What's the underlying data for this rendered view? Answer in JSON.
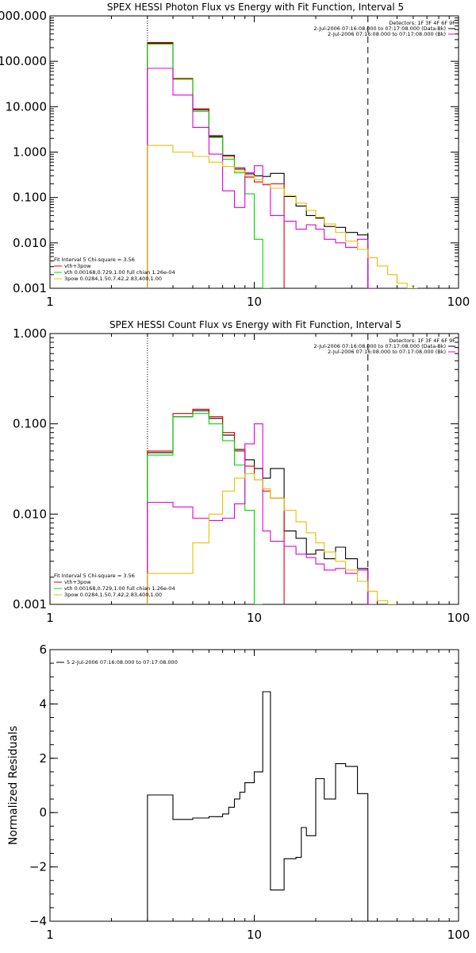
{
  "colors": {
    "black": "#000000",
    "red": "#e00000",
    "green": "#00d800",
    "magenta": "#e000e0",
    "yellow": "#e8c000"
  },
  "chart_data": [
    {
      "type": "line",
      "title": "SPEX HESSI Photon Flux vs Energy with Fit Function, Interval 5",
      "ylabel": "",
      "xscale": "log",
      "yscale": "log",
      "xlim": [
        1,
        100
      ],
      "ylim": [
        0.001,
        1000
      ],
      "xticks": [
        1,
        10,
        100
      ],
      "xticklabels": [
        "1",
        "10",
        "100"
      ],
      "yticks": [
        0.001,
        0.01,
        0.1,
        1,
        10,
        100,
        1000
      ],
      "yticklabels": [
        "0.001",
        "0.010",
        "0.100",
        "1.000",
        "10.000",
        "100.000",
        "1000.000"
      ],
      "vlines": [
        {
          "x": 3,
          "style": "dotted"
        },
        {
          "x": 36,
          "style": "dashed"
        }
      ],
      "legend_right": [
        "Detectors: 1F 3F 4F 6F 9F",
        "2-Jul-2006 07:16:08.000 to 07:17:08.000 (Data-Bk)",
        "2-Jul-2006 07:16:08.000 to 07:17:08.000 (Bk)"
      ],
      "legend_right_colors": [
        "",
        "#000000",
        "#e000e0"
      ],
      "legend_left": [
        "Fit Interval 5   Chi-square = 3.56",
        "vth+3pow",
        "vth 0.00168,0.729,1.00  full chian 1.26e-04",
        "3pow 0.0284,1.50,7.42,2.83,400,1.00"
      ],
      "legend_left_colors": [
        "",
        "#e00000",
        "#00d800",
        "#e8c000"
      ],
      "edges": [
        3,
        4,
        5,
        6,
        7,
        8,
        9,
        10,
        11,
        12,
        14,
        16,
        18,
        20,
        22,
        25,
        28,
        32,
        36,
        40,
        45,
        50,
        56,
        63
      ],
      "series": [
        {
          "color": "#000000",
          "values": [
            250,
            40,
            8.5,
            2.2,
            0.85,
            0.42,
            0.33,
            0.3,
            0.29,
            0.34,
            0.105,
            0.065,
            0.04,
            0.035,
            0.023,
            0.022,
            0.017,
            0.015,
            0.0006
          ]
        },
        {
          "color": "#e00000",
          "values": [
            260,
            42,
            9,
            2.3,
            0.8,
            0.45,
            0.28,
            0.22,
            0.2,
            0.2
          ]
        },
        {
          "color": "#00d800",
          "values": [
            240,
            40,
            7.8,
            2.1,
            0.7,
            0.35,
            0.12,
            0.012,
            0.0006
          ]
        },
        {
          "color": "#e000e0",
          "values": [
            70,
            18,
            3.5,
            0.9,
            0.14,
            0.06,
            0.35,
            0.5,
            0.19,
            0.04,
            0.03,
            0.02,
            0.025,
            0.02,
            0.012,
            0.01,
            0.008,
            0.012,
            0.0006
          ]
        },
        {
          "color": "#e8c000",
          "values": [
            1.4,
            1.0,
            0.8,
            0.6,
            0.48,
            0.38,
            0.3,
            0.25,
            0.2,
            0.16,
            0.11,
            0.075,
            0.052,
            0.037,
            0.026,
            0.017,
            0.011,
            0.0072,
            0.0047,
            0.0031,
            0.002,
            0.0013,
            0.0009
          ]
        }
      ]
    },
    {
      "type": "line",
      "title": "SPEX HESSI Count Flux vs Energy with Fit Function, Interval 5",
      "ylabel": "",
      "xscale": "log",
      "yscale": "log",
      "xlim": [
        1,
        100
      ],
      "ylim": [
        0.001,
        1
      ],
      "xticks": [
        1,
        10,
        100
      ],
      "xticklabels": [
        "1",
        "10",
        "100"
      ],
      "yticks": [
        0.001,
        0.01,
        0.1,
        1
      ],
      "yticklabels": [
        "0.001",
        "0.010",
        "0.100",
        "1.000"
      ],
      "vlines": [
        {
          "x": 3,
          "style": "dotted"
        },
        {
          "x": 36,
          "style": "dashed"
        }
      ],
      "legend_right": [
        "Detectors: 1F 3F 4F 6F 9F",
        "2-Jul-2006 07:16:08.000 to 07:17:08.000 (Data-Bk)",
        "2-Jul-2006 07:16:08.000 to 07:17:08.000 (Bk)"
      ],
      "legend_right_colors": [
        "",
        "#000000",
        "#e000e0"
      ],
      "legend_left": [
        "Fit Interval 5   Chi-square = 3.56",
        "vth+3pow",
        "vth 0.00168,0.729,1.00  full chian 1.26e-04",
        "3pow 0.0284,1.50,7.42,2.83,400,1.00"
      ],
      "legend_left_colors": [
        "",
        "#e00000",
        "#00d800",
        "#e8c000"
      ],
      "edges": [
        3,
        4,
        5,
        6,
        7,
        8,
        9,
        10,
        11,
        12,
        14,
        16,
        18,
        20,
        22,
        25,
        28,
        32,
        36,
        40,
        45,
        50,
        56,
        63
      ],
      "series": [
        {
          "color": "#000000",
          "values": [
            0.048,
            0.12,
            0.14,
            0.115,
            0.075,
            0.052,
            0.04,
            0.032,
            0.025,
            0.032,
            0.0065,
            0.0054,
            0.0036,
            0.004,
            0.0032,
            0.0043,
            0.0032,
            0.0025,
            0.0006
          ]
        },
        {
          "color": "#e00000",
          "values": [
            0.05,
            0.13,
            0.145,
            0.12,
            0.08,
            0.05,
            0.034,
            0.024,
            0.018,
            0.015
          ]
        },
        {
          "color": "#00d800",
          "values": [
            0.045,
            0.12,
            0.13,
            0.1,
            0.065,
            0.035,
            0.011,
            0.0006
          ]
        },
        {
          "color": "#e000e0",
          "values": [
            0.0135,
            0.012,
            0.009,
            0.0085,
            0.009,
            0.013,
            0.06,
            0.1,
            0.0065,
            0.005,
            0.0044,
            0.0036,
            0.0033,
            0.0028,
            0.0024,
            0.0025,
            0.0022,
            0.0024,
            0.0006
          ]
        },
        {
          "color": "#e8c000",
          "values": [
            0.0022,
            0.0022,
            0.0048,
            0.01,
            0.018,
            0.025,
            0.028,
            0.024,
            0.019,
            0.015,
            0.011,
            0.0082,
            0.0062,
            0.0048,
            0.0038,
            0.003,
            0.0024,
            0.0018,
            0.0014,
            0.0011,
            0.0006
          ]
        }
      ]
    },
    {
      "type": "line",
      "title": "",
      "ylabel": "Normalized Residuals",
      "xscale": "log",
      "yscale": "linear",
      "xlim": [
        1,
        100
      ],
      "ylim": [
        -4,
        6
      ],
      "xticks": [
        1,
        10,
        100
      ],
      "xticklabels": [
        "1",
        "10",
        "100"
      ],
      "yticks": [
        -4,
        -2,
        0,
        2,
        4,
        6
      ],
      "yticklabels": [
        "−4",
        "−2",
        "0",
        "2",
        "4",
        "6"
      ],
      "legend_text": "5  2-Jul-2006 07:16:08.000 to 07:17:08.000",
      "edges": [
        3,
        4,
        5,
        6,
        7,
        7.5,
        8,
        8.5,
        9,
        10,
        11,
        12,
        14,
        16,
        17,
        18,
        20,
        22,
        25,
        28,
        32,
        36
      ],
      "series": [
        {
          "color": "#000000",
          "values": [
            0.65,
            -0.25,
            -0.2,
            -0.15,
            -0.05,
            0.2,
            0.5,
            0.75,
            1.1,
            1.5,
            4.45,
            -2.85,
            -1.7,
            -1.65,
            -0.55,
            -0.85,
            1.25,
            0.5,
            1.8,
            1.7,
            0.7
          ]
        }
      ]
    }
  ]
}
